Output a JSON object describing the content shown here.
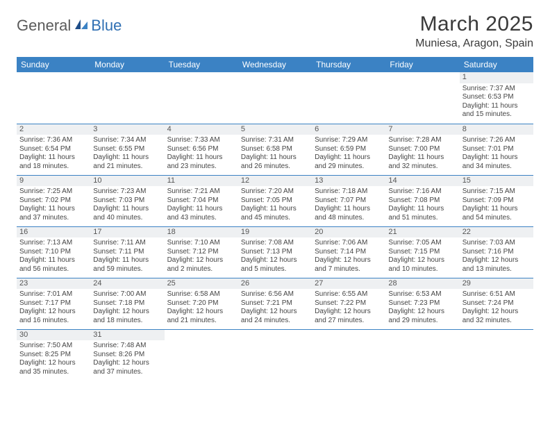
{
  "brand": {
    "part1": "General",
    "part2": "Blue"
  },
  "title": "March 2025",
  "location": "Muniesa, Aragon, Spain",
  "colors": {
    "header_bg": "#3b82c4",
    "header_text": "#ffffff",
    "border": "#3b82c4",
    "daynum_bg": "#eef0f2",
    "brand_gray": "#5a5a5a",
    "brand_blue": "#2f6fb3"
  },
  "day_headers": [
    "Sunday",
    "Monday",
    "Tuesday",
    "Wednesday",
    "Thursday",
    "Friday",
    "Saturday"
  ],
  "weeks": [
    [
      null,
      null,
      null,
      null,
      null,
      null,
      {
        "n": "1",
        "sr": "Sunrise: 7:37 AM",
        "ss": "Sunset: 6:53 PM",
        "d1": "Daylight: 11 hours",
        "d2": "and 15 minutes."
      }
    ],
    [
      {
        "n": "2",
        "sr": "Sunrise: 7:36 AM",
        "ss": "Sunset: 6:54 PM",
        "d1": "Daylight: 11 hours",
        "d2": "and 18 minutes."
      },
      {
        "n": "3",
        "sr": "Sunrise: 7:34 AM",
        "ss": "Sunset: 6:55 PM",
        "d1": "Daylight: 11 hours",
        "d2": "and 21 minutes."
      },
      {
        "n": "4",
        "sr": "Sunrise: 7:33 AM",
        "ss": "Sunset: 6:56 PM",
        "d1": "Daylight: 11 hours",
        "d2": "and 23 minutes."
      },
      {
        "n": "5",
        "sr": "Sunrise: 7:31 AM",
        "ss": "Sunset: 6:58 PM",
        "d1": "Daylight: 11 hours",
        "d2": "and 26 minutes."
      },
      {
        "n": "6",
        "sr": "Sunrise: 7:29 AM",
        "ss": "Sunset: 6:59 PM",
        "d1": "Daylight: 11 hours",
        "d2": "and 29 minutes."
      },
      {
        "n": "7",
        "sr": "Sunrise: 7:28 AM",
        "ss": "Sunset: 7:00 PM",
        "d1": "Daylight: 11 hours",
        "d2": "and 32 minutes."
      },
      {
        "n": "8",
        "sr": "Sunrise: 7:26 AM",
        "ss": "Sunset: 7:01 PM",
        "d1": "Daylight: 11 hours",
        "d2": "and 34 minutes."
      }
    ],
    [
      {
        "n": "9",
        "sr": "Sunrise: 7:25 AM",
        "ss": "Sunset: 7:02 PM",
        "d1": "Daylight: 11 hours",
        "d2": "and 37 minutes."
      },
      {
        "n": "10",
        "sr": "Sunrise: 7:23 AM",
        "ss": "Sunset: 7:03 PM",
        "d1": "Daylight: 11 hours",
        "d2": "and 40 minutes."
      },
      {
        "n": "11",
        "sr": "Sunrise: 7:21 AM",
        "ss": "Sunset: 7:04 PM",
        "d1": "Daylight: 11 hours",
        "d2": "and 43 minutes."
      },
      {
        "n": "12",
        "sr": "Sunrise: 7:20 AM",
        "ss": "Sunset: 7:05 PM",
        "d1": "Daylight: 11 hours",
        "d2": "and 45 minutes."
      },
      {
        "n": "13",
        "sr": "Sunrise: 7:18 AM",
        "ss": "Sunset: 7:07 PM",
        "d1": "Daylight: 11 hours",
        "d2": "and 48 minutes."
      },
      {
        "n": "14",
        "sr": "Sunrise: 7:16 AM",
        "ss": "Sunset: 7:08 PM",
        "d1": "Daylight: 11 hours",
        "d2": "and 51 minutes."
      },
      {
        "n": "15",
        "sr": "Sunrise: 7:15 AM",
        "ss": "Sunset: 7:09 PM",
        "d1": "Daylight: 11 hours",
        "d2": "and 54 minutes."
      }
    ],
    [
      {
        "n": "16",
        "sr": "Sunrise: 7:13 AM",
        "ss": "Sunset: 7:10 PM",
        "d1": "Daylight: 11 hours",
        "d2": "and 56 minutes."
      },
      {
        "n": "17",
        "sr": "Sunrise: 7:11 AM",
        "ss": "Sunset: 7:11 PM",
        "d1": "Daylight: 11 hours",
        "d2": "and 59 minutes."
      },
      {
        "n": "18",
        "sr": "Sunrise: 7:10 AM",
        "ss": "Sunset: 7:12 PM",
        "d1": "Daylight: 12 hours",
        "d2": "and 2 minutes."
      },
      {
        "n": "19",
        "sr": "Sunrise: 7:08 AM",
        "ss": "Sunset: 7:13 PM",
        "d1": "Daylight: 12 hours",
        "d2": "and 5 minutes."
      },
      {
        "n": "20",
        "sr": "Sunrise: 7:06 AM",
        "ss": "Sunset: 7:14 PM",
        "d1": "Daylight: 12 hours",
        "d2": "and 7 minutes."
      },
      {
        "n": "21",
        "sr": "Sunrise: 7:05 AM",
        "ss": "Sunset: 7:15 PM",
        "d1": "Daylight: 12 hours",
        "d2": "and 10 minutes."
      },
      {
        "n": "22",
        "sr": "Sunrise: 7:03 AM",
        "ss": "Sunset: 7:16 PM",
        "d1": "Daylight: 12 hours",
        "d2": "and 13 minutes."
      }
    ],
    [
      {
        "n": "23",
        "sr": "Sunrise: 7:01 AM",
        "ss": "Sunset: 7:17 PM",
        "d1": "Daylight: 12 hours",
        "d2": "and 16 minutes."
      },
      {
        "n": "24",
        "sr": "Sunrise: 7:00 AM",
        "ss": "Sunset: 7:18 PM",
        "d1": "Daylight: 12 hours",
        "d2": "and 18 minutes."
      },
      {
        "n": "25",
        "sr": "Sunrise: 6:58 AM",
        "ss": "Sunset: 7:20 PM",
        "d1": "Daylight: 12 hours",
        "d2": "and 21 minutes."
      },
      {
        "n": "26",
        "sr": "Sunrise: 6:56 AM",
        "ss": "Sunset: 7:21 PM",
        "d1": "Daylight: 12 hours",
        "d2": "and 24 minutes."
      },
      {
        "n": "27",
        "sr": "Sunrise: 6:55 AM",
        "ss": "Sunset: 7:22 PM",
        "d1": "Daylight: 12 hours",
        "d2": "and 27 minutes."
      },
      {
        "n": "28",
        "sr": "Sunrise: 6:53 AM",
        "ss": "Sunset: 7:23 PM",
        "d1": "Daylight: 12 hours",
        "d2": "and 29 minutes."
      },
      {
        "n": "29",
        "sr": "Sunrise: 6:51 AM",
        "ss": "Sunset: 7:24 PM",
        "d1": "Daylight: 12 hours",
        "d2": "and 32 minutes."
      }
    ],
    [
      {
        "n": "30",
        "sr": "Sunrise: 7:50 AM",
        "ss": "Sunset: 8:25 PM",
        "d1": "Daylight: 12 hours",
        "d2": "and 35 minutes."
      },
      {
        "n": "31",
        "sr": "Sunrise: 7:48 AM",
        "ss": "Sunset: 8:26 PM",
        "d1": "Daylight: 12 hours",
        "d2": "and 37 minutes."
      },
      null,
      null,
      null,
      null,
      null
    ]
  ]
}
